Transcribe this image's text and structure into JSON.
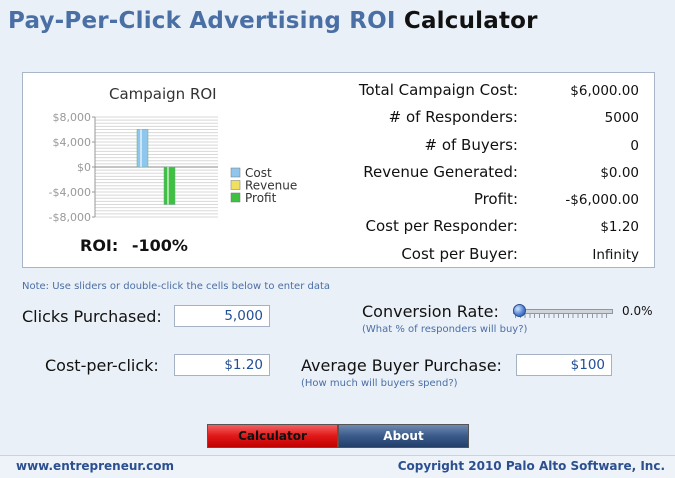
{
  "title": {
    "part1": "Pay-Per-Click Advertising ROI",
    "part2": "Calculator"
  },
  "chart": {
    "title": "Campaign ROI",
    "roi_label": "ROI:",
    "roi_value": "-100%"
  },
  "chart_data": {
    "type": "bar",
    "title": "Campaign ROI",
    "categories": [
      "Cost",
      "Revenue",
      "Profit"
    ],
    "values": [
      6000,
      0,
      -6000
    ],
    "colors": [
      "#8fc6ee",
      "#f0e060",
      "#40c040"
    ],
    "ylim": [
      -8000,
      8000
    ],
    "yticks": [
      "$8,000",
      "$4,000",
      "$0",
      "-$4,000",
      "-$8,000"
    ],
    "grid": true,
    "legend_position": "right"
  },
  "metrics": [
    {
      "label": "Total Campaign Cost:",
      "value": "$6,000.00"
    },
    {
      "label": "# of Responders:",
      "value": "5000"
    },
    {
      "label": "# of Buyers:",
      "value": "0"
    },
    {
      "label": "Revenue Generated:",
      "value": "$0.00"
    },
    {
      "label": "Profit:",
      "value": "-$6,000.00"
    },
    {
      "label": "Cost per Responder:",
      "value": "$1.20"
    },
    {
      "label": "Cost per Buyer:",
      "value": "Infinity"
    }
  ],
  "note": "Note: Use sliders or double-click the cells below to enter data",
  "inputs": {
    "clicks_label": "Clicks Purchased:",
    "clicks_value": "5,000",
    "cpc_label": "Cost-per-click:",
    "cpc_value": "$1.20",
    "conversion_label": "Conversion Rate:",
    "conversion_hint": "(What % of responders will buy?)",
    "conversion_value": "0.0%",
    "conversion_fraction": 0,
    "purchase_label": "Average Buyer Purchase:",
    "purchase_value": "$100",
    "purchase_hint": "(How much will buyers spend?)"
  },
  "buttons": {
    "calculator": "Calculator",
    "about": "About"
  },
  "footer": {
    "left": "www.entrepreneur.com",
    "right": "Copyright 2010 Palo Alto Software, Inc."
  }
}
